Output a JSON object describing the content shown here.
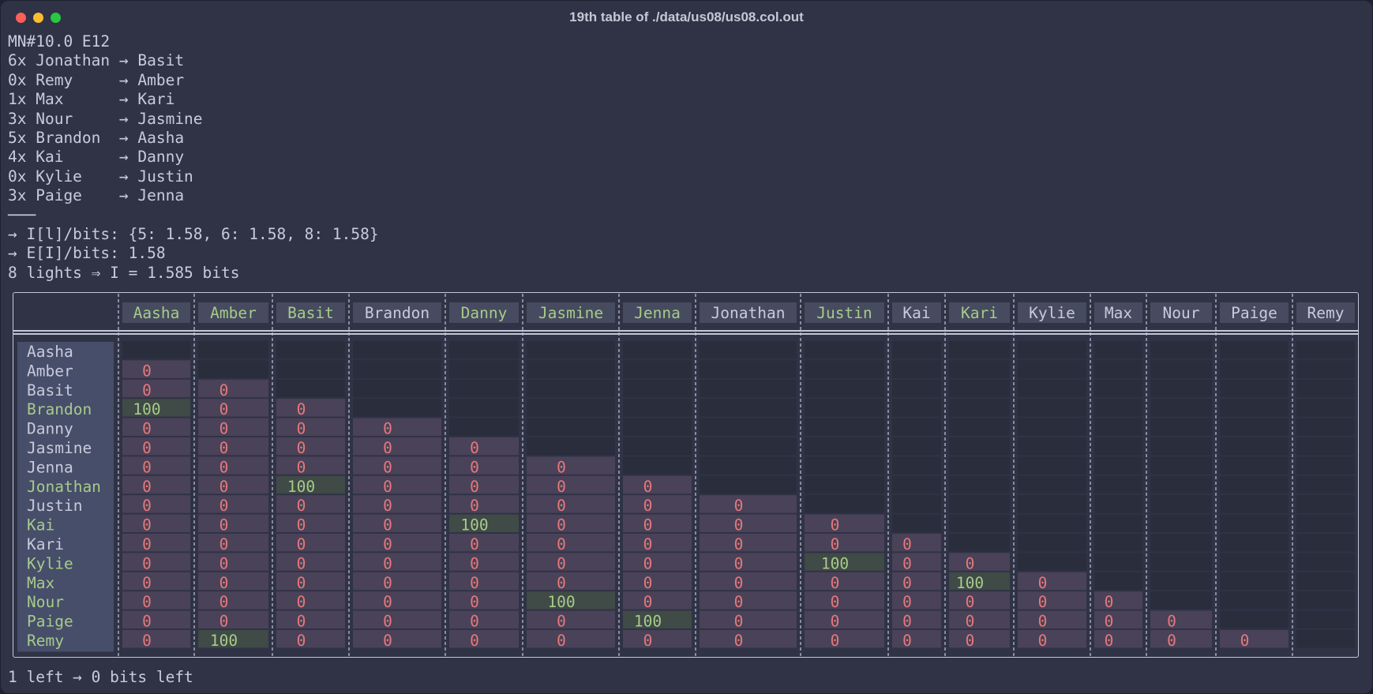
{
  "window": {
    "title": "19th table of ./data/us08/us08.col.out"
  },
  "header_lines": [
    "MN#10.0 E12",
    "6x Jonathan → Basit",
    "0x Remy     → Amber",
    "1x Max      → Kari",
    "3x Nour     → Jasmine",
    "5x Brandon  → Aasha",
    "4x Kai      → Danny",
    "0x Kylie    → Justin",
    "3x Paige    → Jenna",
    "───",
    "→ I[l]/bits: {5: 1.58, 6: 1.58, 8: 1.58}",
    "→ E[I]/bits: 1.58",
    "8 lights ⇒ I = 1.585 bits"
  ],
  "footer": "1 left → 0 bits left",
  "colors": {
    "zero": "#e5787b",
    "hundred": "#a7cb8a",
    "label": "#c9cbdb",
    "green_label": "#a7cb8a",
    "box_blue": "#474e6a",
    "box_green": "#404a46",
    "box_purple": "#4a4258",
    "box_dark": "#2a2d3c"
  },
  "table": {
    "columns": [
      "Aasha",
      "Amber",
      "Basit",
      "Brandon",
      "Danny",
      "Jasmine",
      "Jenna",
      "Jonathan",
      "Justin",
      "Kai",
      "Kari",
      "Kylie",
      "Max",
      "Nour",
      "Paige",
      "Remy"
    ],
    "green_names": [
      "Aasha",
      "Amber",
      "Basit",
      "Danny",
      "Jasmine",
      "Jenna",
      "Justin",
      "Kari",
      "Brandon",
      "Jonathan",
      "Kai",
      "Kylie",
      "Max",
      "Nour",
      "Paige",
      "Remy"
    ],
    "header_green": [
      "Aasha",
      "Amber",
      "Basit",
      "Danny",
      "Jasmine",
      "Jenna",
      "Justin",
      "Kari"
    ],
    "row_green": [
      "Brandon",
      "Jonathan",
      "Kai",
      "Kylie",
      "Max",
      "Nour",
      "Paige",
      "Remy"
    ],
    "rows": [
      {
        "name": "Aasha",
        "cells": []
      },
      {
        "name": "Amber",
        "cells": [
          "0"
        ]
      },
      {
        "name": "Basit",
        "cells": [
          "0",
          "0"
        ]
      },
      {
        "name": "Brandon",
        "cells": [
          "100",
          "0",
          "0"
        ]
      },
      {
        "name": "Danny",
        "cells": [
          "0",
          "0",
          "0",
          "0"
        ]
      },
      {
        "name": "Jasmine",
        "cells": [
          "0",
          "0",
          "0",
          "0",
          "0"
        ]
      },
      {
        "name": "Jenna",
        "cells": [
          "0",
          "0",
          "0",
          "0",
          "0",
          "0"
        ]
      },
      {
        "name": "Jonathan",
        "cells": [
          "0",
          "0",
          "100",
          "0",
          "0",
          "0",
          "0"
        ]
      },
      {
        "name": "Justin",
        "cells": [
          "0",
          "0",
          "0",
          "0",
          "0",
          "0",
          "0",
          "0"
        ]
      },
      {
        "name": "Kai",
        "cells": [
          "0",
          "0",
          "0",
          "0",
          "100",
          "0",
          "0",
          "0",
          "0"
        ]
      },
      {
        "name": "Kari",
        "cells": [
          "0",
          "0",
          "0",
          "0",
          "0",
          "0",
          "0",
          "0",
          "0",
          "0"
        ]
      },
      {
        "name": "Kylie",
        "cells": [
          "0",
          "0",
          "0",
          "0",
          "0",
          "0",
          "0",
          "0",
          "100",
          "0",
          "0"
        ]
      },
      {
        "name": "Max",
        "cells": [
          "0",
          "0",
          "0",
          "0",
          "0",
          "0",
          "0",
          "0",
          "0",
          "0",
          "100",
          "0"
        ]
      },
      {
        "name": "Nour",
        "cells": [
          "0",
          "0",
          "0",
          "0",
          "0",
          "100",
          "0",
          "0",
          "0",
          "0",
          "0",
          "0",
          "0"
        ]
      },
      {
        "name": "Paige",
        "cells": [
          "0",
          "0",
          "0",
          "0",
          "0",
          "0",
          "100",
          "0",
          "0",
          "0",
          "0",
          "0",
          "0",
          "0"
        ]
      },
      {
        "name": "Remy",
        "cells": [
          "0",
          "100",
          "0",
          "0",
          "0",
          "0",
          "0",
          "0",
          "0",
          "0",
          "0",
          "0",
          "0",
          "0",
          "0"
        ]
      }
    ]
  }
}
